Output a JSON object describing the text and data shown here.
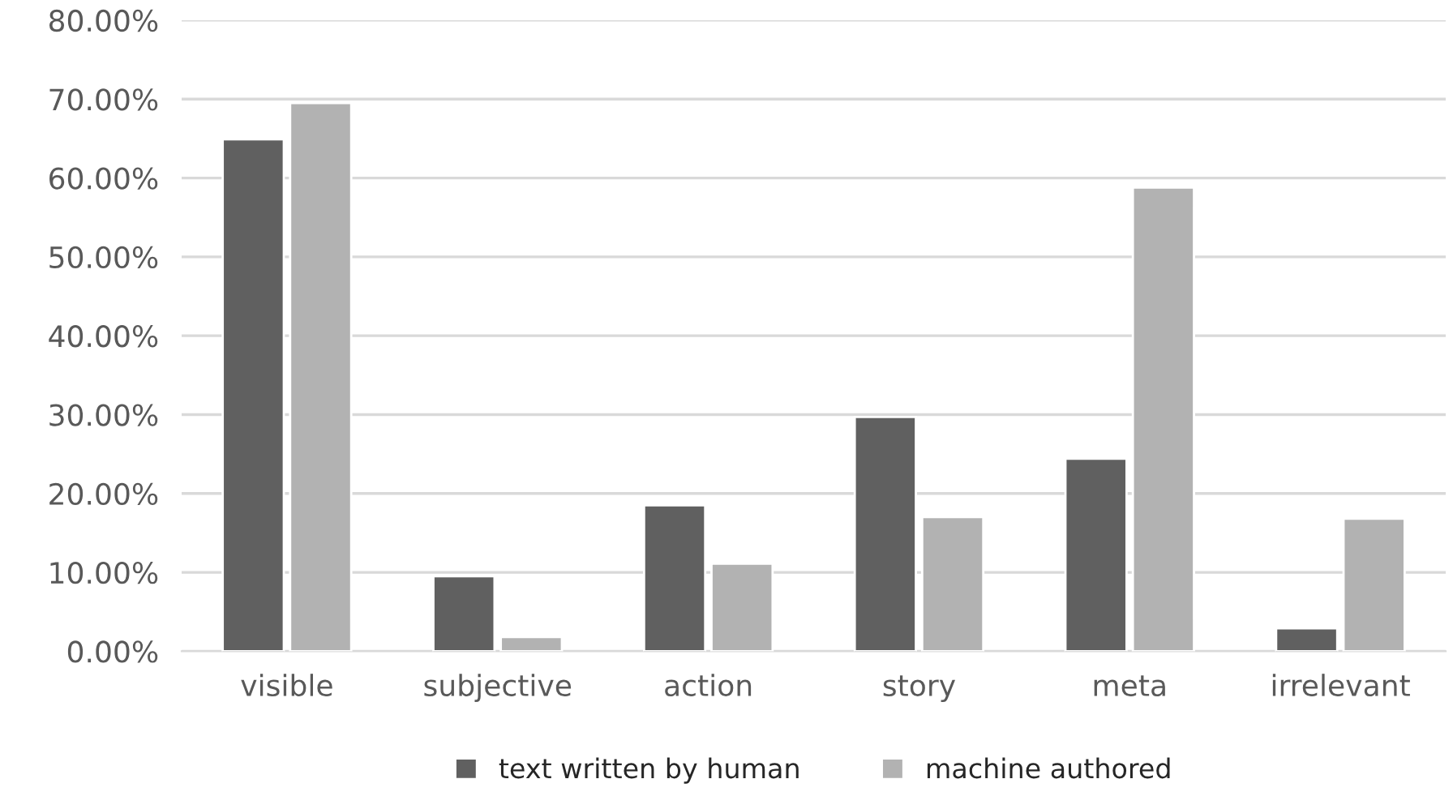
{
  "chart_data": {
    "type": "bar",
    "categories": [
      "visible",
      "subjective",
      "action",
      "story",
      "meta",
      "irrelevant"
    ],
    "series": [
      {
        "name": "text written by human",
        "color": "#606060",
        "values": [
          64.9,
          9.5,
          18.5,
          29.7,
          24.4,
          2.9
        ]
      },
      {
        "name": "machine authored",
        "color": "#b2b2b2",
        "values": [
          69.5,
          1.8,
          11.1,
          17.0,
          58.8,
          16.8
        ]
      }
    ],
    "ylim": [
      0,
      80
    ],
    "yticks": [
      {
        "value": 0,
        "label": "0.00%"
      },
      {
        "value": 10,
        "label": "10.00%"
      },
      {
        "value": 20,
        "label": "20.00%"
      },
      {
        "value": 30,
        "label": "30.00%"
      },
      {
        "value": 40,
        "label": "40.00%"
      },
      {
        "value": 50,
        "label": "50.00%"
      },
      {
        "value": 60,
        "label": "60.00%"
      },
      {
        "value": 70,
        "label": "70.00%"
      },
      {
        "value": 80,
        "label": "80.00%"
      }
    ],
    "grid": "y",
    "legend": "bottom"
  }
}
